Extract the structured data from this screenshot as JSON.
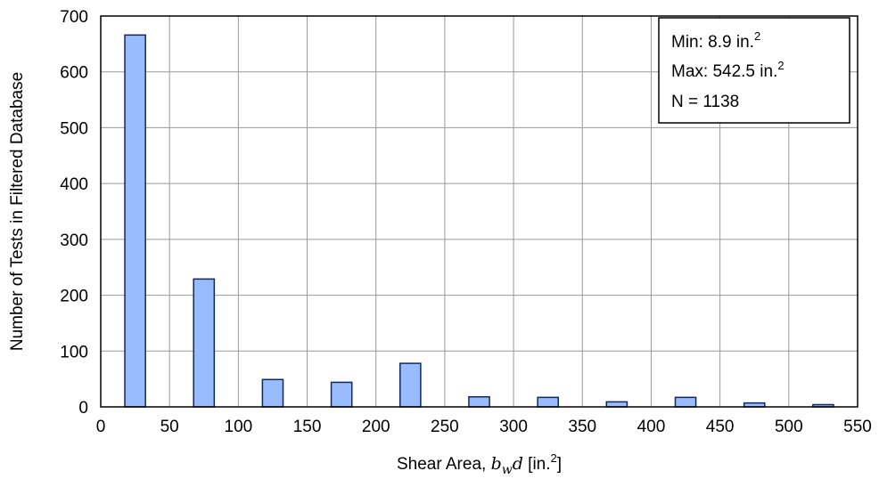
{
  "chart_data": {
    "type": "bar",
    "xlabel_prefix": "Shear Area, ",
    "xlabel_b": "b",
    "xlabel_sub": "w",
    "xlabel_d": "d",
    "xlabel_unit": " [in.",
    "xlabel_unit_sup": "2",
    "xlabel_unit_end": "]",
    "ylabel": "Number of Tests in Filtered Database",
    "xlim": [
      0,
      550
    ],
    "ylim": [
      0,
      700
    ],
    "x_ticks": [
      0,
      50,
      100,
      150,
      200,
      250,
      300,
      350,
      400,
      450,
      500,
      550
    ],
    "y_ticks": [
      0,
      100,
      200,
      300,
      400,
      500,
      600,
      700
    ],
    "bin_width": 50,
    "bar_fraction": 0.4,
    "bins": [
      {
        "start": 0,
        "end": 50,
        "value": 666
      },
      {
        "start": 50,
        "end": 100,
        "value": 229
      },
      {
        "start": 100,
        "end": 150,
        "value": 49
      },
      {
        "start": 150,
        "end": 200,
        "value": 44
      },
      {
        "start": 200,
        "end": 250,
        "value": 78
      },
      {
        "start": 250,
        "end": 300,
        "value": 18
      },
      {
        "start": 300,
        "end": 350,
        "value": 17
      },
      {
        "start": 350,
        "end": 400,
        "value": 9
      },
      {
        "start": 400,
        "end": 450,
        "value": 17
      },
      {
        "start": 450,
        "end": 500,
        "value": 7
      },
      {
        "start": 500,
        "end": 550,
        "value": 4
      }
    ],
    "grid": true,
    "legend_position": "top-right",
    "annotation": {
      "min_label": "Min: 8.9 in.",
      "min_sup": "2",
      "max_label": "Max: 542.5 in.",
      "max_sup": "2",
      "n_label": "N = 1138"
    },
    "bar_color": "#99bbff",
    "bar_edge_color": "#0f2a5a",
    "grid_color": "#999999"
  }
}
